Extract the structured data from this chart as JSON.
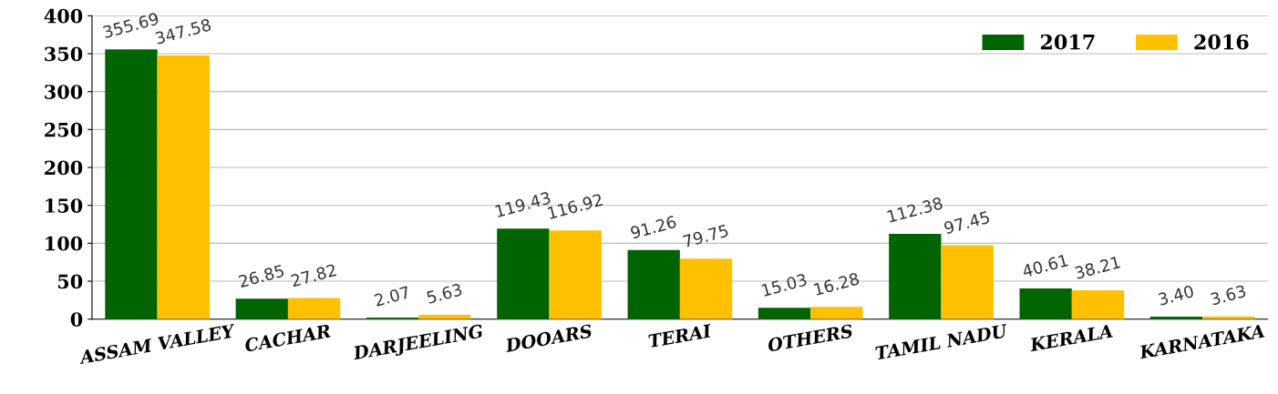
{
  "chart_data": {
    "type": "bar",
    "categories": [
      "ASSAM VALLEY",
      "CACHAR",
      "DARJEELING",
      "DOOARS",
      "TERAI",
      "OTHERS",
      "TAMIL NADU",
      "KERALA",
      "KARNATAKA"
    ],
    "series": [
      {
        "name": "2017",
        "color": "#006400",
        "values": [
          355.69,
          26.85,
          2.07,
          119.43,
          91.26,
          15.03,
          112.38,
          40.61,
          3.4
        ],
        "value_labels": [
          "355.69",
          "26.85",
          "2.07",
          "119.43",
          "91.26",
          "15.03",
          "112.38",
          "40.61",
          "3.40"
        ]
      },
      {
        "name": "2016",
        "color": "#ffc000",
        "values": [
          347.58,
          27.82,
          5.63,
          116.92,
          79.75,
          16.28,
          97.45,
          38.21,
          3.63
        ],
        "value_labels": [
          "347.58",
          "27.82",
          "5.63",
          "116.92",
          "79.75",
          "16.28",
          "97.45",
          "38.21",
          "3.63"
        ]
      }
    ],
    "ylim": [
      0,
      400
    ],
    "yticks": [
      0,
      50,
      100,
      150,
      200,
      250,
      300,
      350,
      400
    ],
    "grid": "y",
    "legend": "top right"
  }
}
